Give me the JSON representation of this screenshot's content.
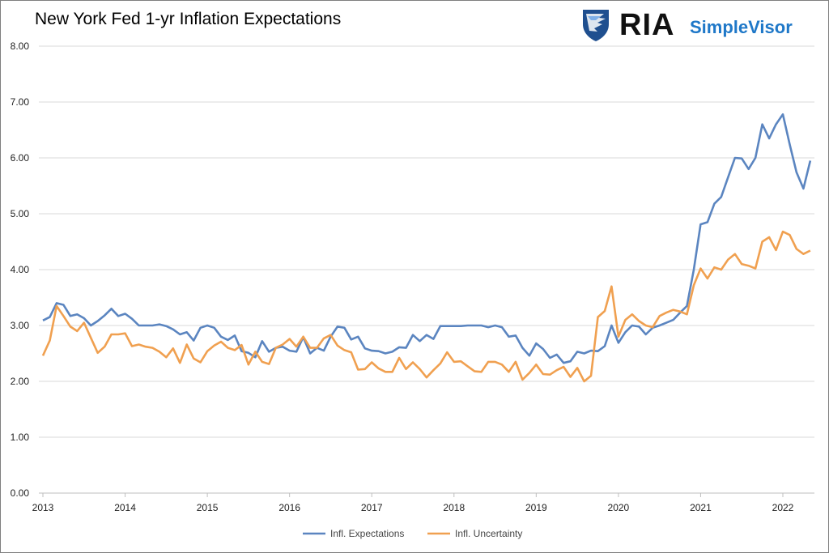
{
  "title": "New York Fed 1-yr Inflation Expectations",
  "logo": {
    "brand": "RIA",
    "product": "SimpleVisor"
  },
  "colors": {
    "expectations": "#5b85c0",
    "uncertainty": "#f0a050",
    "grid": "#d9d9d9",
    "brand_blue": "#1f78c8"
  },
  "chart_data": {
    "type": "line",
    "title": "New York Fed 1-yr Inflation Expectations",
    "ylim": [
      0,
      8
    ],
    "y_ticks": [
      "0.00",
      "1.00",
      "2.00",
      "3.00",
      "4.00",
      "5.00",
      "6.00",
      "7.00",
      "8.00"
    ],
    "x_ticks": [
      "2013",
      "2014",
      "2015",
      "2016",
      "2017",
      "2018",
      "2019",
      "2020",
      "2021",
      "2022"
    ],
    "x_start": 2013.0,
    "x_step_months": 1,
    "legend_position": "bottom",
    "series": [
      {
        "name": "Infl. Expectations",
        "color": "#5b85c0",
        "values": [
          3.09,
          3.15,
          3.4,
          3.37,
          3.17,
          3.2,
          3.13,
          3.0,
          3.08,
          3.18,
          3.3,
          3.17,
          3.21,
          3.12,
          3.0,
          3.0,
          3.0,
          3.02,
          2.99,
          2.93,
          2.84,
          2.88,
          2.73,
          2.96,
          3.0,
          2.96,
          2.8,
          2.74,
          2.82,
          2.54,
          2.51,
          2.43,
          2.72,
          2.53,
          2.6,
          2.62,
          2.55,
          2.53,
          2.79,
          2.5,
          2.6,
          2.55,
          2.8,
          2.98,
          2.96,
          2.75,
          2.8,
          2.59,
          2.55,
          2.54,
          2.5,
          2.53,
          2.61,
          2.6,
          2.83,
          2.72,
          2.83,
          2.76,
          2.99,
          2.99,
          2.99,
          2.99,
          3.0,
          3.0,
          3.0,
          2.97,
          3.0,
          2.97,
          2.8,
          2.82,
          2.6,
          2.46,
          2.68,
          2.58,
          2.42,
          2.48,
          2.33,
          2.36,
          2.53,
          2.5,
          2.55,
          2.54,
          2.63,
          3.0,
          2.69,
          2.88,
          3.0,
          2.98,
          2.84,
          2.96,
          3.0,
          3.05,
          3.1,
          3.23,
          3.35,
          4.0,
          4.81,
          4.85,
          5.18,
          5.3,
          5.65,
          6.0,
          5.99,
          5.8,
          6.0,
          6.6,
          6.35,
          6.6,
          6.78,
          6.24,
          5.74,
          5.45,
          5.95
        ]
      },
      {
        "name": "Infl. Uncertainty",
        "color": "#f0a050",
        "values": [
          2.46,
          2.73,
          3.35,
          3.17,
          2.98,
          2.9,
          3.05,
          2.78,
          2.51,
          2.62,
          2.84,
          2.84,
          2.86,
          2.63,
          2.66,
          2.62,
          2.6,
          2.53,
          2.43,
          2.59,
          2.33,
          2.66,
          2.41,
          2.34,
          2.54,
          2.64,
          2.71,
          2.6,
          2.56,
          2.65,
          2.3,
          2.53,
          2.35,
          2.31,
          2.6,
          2.66,
          2.76,
          2.62,
          2.8,
          2.6,
          2.6,
          2.77,
          2.83,
          2.64,
          2.56,
          2.52,
          2.21,
          2.22,
          2.34,
          2.23,
          2.17,
          2.17,
          2.42,
          2.22,
          2.34,
          2.22,
          2.07,
          2.2,
          2.32,
          2.52,
          2.35,
          2.36,
          2.27,
          2.18,
          2.17,
          2.35,
          2.35,
          2.3,
          2.17,
          2.35,
          2.03,
          2.15,
          2.3,
          2.13,
          2.12,
          2.2,
          2.26,
          2.08,
          2.24,
          2.0,
          2.1,
          3.15,
          3.26,
          3.7,
          2.8,
          3.1,
          3.2,
          3.08,
          3.0,
          2.97,
          3.17,
          3.23,
          3.28,
          3.25,
          3.2,
          3.72,
          4.02,
          3.84,
          4.04,
          4.0,
          4.18,
          4.28,
          4.1,
          4.07,
          4.02,
          4.5,
          4.58,
          4.35,
          4.68,
          4.62,
          4.37,
          4.28,
          4.34
        ]
      }
    ]
  }
}
